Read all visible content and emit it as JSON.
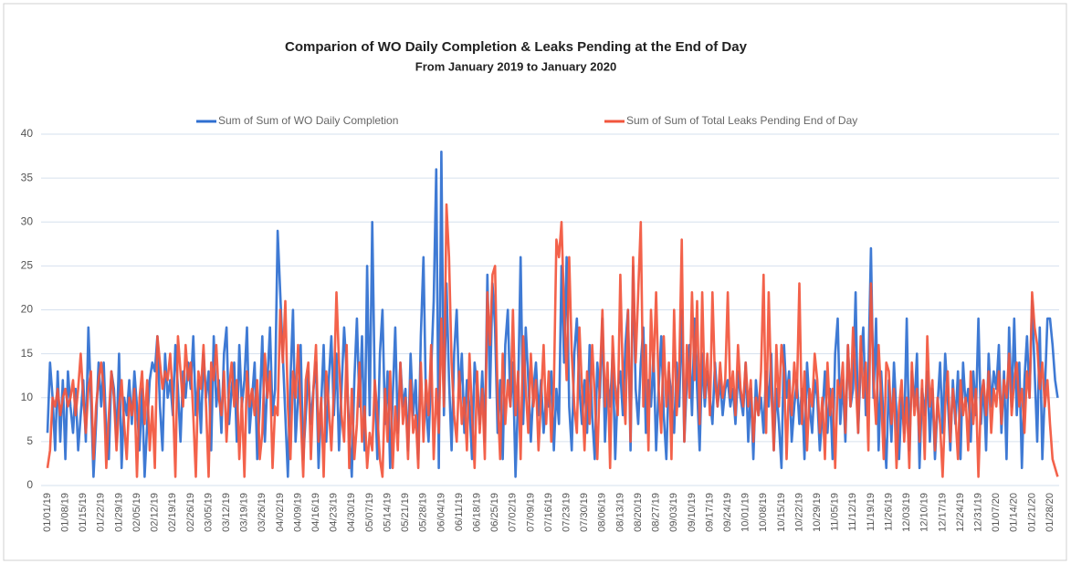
{
  "chart_data": {
    "type": "line",
    "title": "Comparion of WO Daily Completion & Leaks Pending at the End of Day",
    "subtitle": "From January 2019 to January 2020",
    "categories": [
      "01/01/19",
      null,
      null,
      null,
      null,
      null,
      null,
      "01/08/19",
      null,
      null,
      null,
      null,
      null,
      null,
      "01/15/19",
      null,
      null,
      null,
      null,
      null,
      null,
      "01/22/19",
      null,
      null,
      null,
      null,
      null,
      null,
      "01/29/19",
      null,
      null,
      null,
      null,
      null,
      null,
      "02/05/19",
      null,
      null,
      null,
      null,
      null,
      null,
      "02/12/19",
      null,
      null,
      null,
      null,
      null,
      null,
      "02/19/19",
      null,
      null,
      null,
      null,
      null,
      null,
      "02/26/19",
      null,
      null,
      null,
      null,
      null,
      null,
      "03/05/19",
      null,
      null,
      null,
      null,
      null,
      null,
      "03/12/19",
      null,
      null,
      null,
      null,
      null,
      null,
      "03/19/19",
      null,
      null,
      null,
      null,
      null,
      null,
      "03/26/19",
      null,
      null,
      null,
      null,
      null,
      null,
      "04/02/19",
      null,
      null,
      null,
      null,
      null,
      null,
      "04/09/19",
      null,
      null,
      null,
      null,
      null,
      null,
      "04/16/19",
      null,
      null,
      null,
      null,
      null,
      null,
      "04/23/19",
      null,
      null,
      null,
      null,
      null,
      null,
      "04/30/19",
      null,
      null,
      null,
      null,
      null,
      null,
      "05/07/19",
      null,
      null,
      null,
      null,
      null,
      null,
      "05/14/19",
      null,
      null,
      null,
      null,
      null,
      null,
      "05/21/19",
      null,
      null,
      null,
      null,
      null,
      null,
      "05/28/19",
      null,
      null,
      null,
      null,
      null,
      null,
      "06/04/19",
      null,
      null,
      null,
      null,
      null,
      null,
      "06/11/19",
      null,
      null,
      null,
      null,
      null,
      null,
      "06/18/19",
      null,
      null,
      null,
      null,
      null,
      null,
      "06/25/19",
      null,
      null,
      null,
      null,
      null,
      null,
      "07/02/19",
      null,
      null,
      null,
      null,
      null,
      null,
      "07/09/19",
      null,
      null,
      null,
      null,
      null,
      null,
      "07/16/19",
      null,
      null,
      null,
      null,
      null,
      null,
      "07/23/19",
      null,
      null,
      null,
      null,
      null,
      null,
      "07/30/19",
      null,
      null,
      null,
      null,
      null,
      null,
      "08/06/19",
      null,
      null,
      null,
      null,
      null,
      null,
      "08/13/19",
      null,
      null,
      null,
      null,
      null,
      null,
      "08/20/19",
      null,
      null,
      null,
      null,
      null,
      null,
      "08/27/19",
      null,
      null,
      null,
      null,
      null,
      null,
      "09/03/19",
      null,
      null,
      null,
      null,
      null,
      null,
      "09/10/19",
      null,
      null,
      null,
      null,
      null,
      null,
      "09/17/19",
      null,
      null,
      null,
      null,
      null,
      null,
      "09/24/19",
      null,
      null,
      null,
      null,
      null,
      null,
      "10/01/19",
      null,
      null,
      null,
      null,
      null,
      null,
      "10/08/19",
      null,
      null,
      null,
      null,
      null,
      null,
      "10/15/19",
      null,
      null,
      null,
      null,
      null,
      null,
      "10/22/19",
      null,
      null,
      null,
      null,
      null,
      null,
      "10/29/19",
      null,
      null,
      null,
      null,
      null,
      null,
      "11/05/19",
      null,
      null,
      null,
      null,
      null,
      null,
      "11/12/19",
      null,
      null,
      null,
      null,
      null,
      null,
      "11/19/19",
      null,
      null,
      null,
      null,
      null,
      null,
      "11/26/19",
      null,
      null,
      null,
      null,
      null,
      null,
      "12/03/19",
      null,
      null,
      null,
      null,
      null,
      null,
      "12/10/19",
      null,
      null,
      null,
      null,
      null,
      null,
      "12/17/19",
      null,
      null,
      null,
      null,
      null,
      null,
      "12/24/19",
      null,
      null,
      null,
      null,
      null,
      null,
      "12/31/19",
      null,
      null,
      null,
      null,
      null,
      null,
      "01/07/20",
      null,
      null,
      null,
      null,
      null,
      null,
      "01/14/20",
      null,
      null,
      null,
      null,
      null,
      null,
      "01/21/20",
      null,
      null,
      null,
      null,
      null,
      null,
      "01/28/20",
      null,
      null,
      null
    ],
    "series": [
      {
        "name": "Sum of Sum of WO Daily Completion",
        "color": "#2f6fd0",
        "values": [
          6,
          14,
          10,
          4,
          13,
          5,
          12,
          3,
          13,
          9,
          6,
          11,
          4,
          8,
          12,
          5,
          18,
          10,
          1,
          7,
          14,
          9,
          14,
          6,
          3,
          13,
          11,
          5,
          15,
          2,
          10,
          8,
          12,
          7,
          13,
          9,
          4,
          11,
          1,
          7,
          12,
          14,
          13,
          17,
          9,
          4,
          15,
          10,
          12,
          8,
          16,
          11,
          5,
          13,
          10,
          14,
          11,
          17,
          8,
          12,
          6,
          15,
          10,
          13,
          4,
          17,
          9,
          12,
          6,
          15,
          18,
          7,
          11,
          14,
          5,
          16,
          9,
          12,
          18,
          6,
          10,
          14,
          3,
          9,
          17,
          5,
          12,
          18,
          8,
          11,
          29,
          22,
          15,
          8,
          1,
          12,
          20,
          5,
          10,
          16,
          3,
          8,
          13,
          7,
          11,
          14,
          2,
          9,
          16,
          5,
          12,
          17,
          8,
          15,
          4,
          11,
          18,
          13,
          6,
          1,
          12,
          19,
          9,
          17,
          4,
          25,
          8,
          30,
          11,
          3,
          15,
          20,
          7,
          13,
          2,
          10,
          18,
          6,
          14,
          9,
          11,
          4,
          15,
          8,
          12,
          3,
          17,
          26,
          9,
          5,
          13,
          21,
          36,
          2,
          38,
          8,
          23,
          12,
          4,
          15,
          20,
          10,
          15,
          6,
          12,
          9,
          3,
          14,
          11,
          7,
          13,
          5,
          24,
          10,
          23,
          18,
          6,
          12,
          3,
          16,
          20,
          9,
          14,
          1,
          10,
          26,
          7,
          18,
          12,
          5,
          11,
          14,
          8,
          12,
          6,
          10,
          9,
          13,
          4,
          11,
          7,
          25,
          14,
          26,
          9,
          4,
          15,
          19,
          11,
          7,
          12,
          6,
          16,
          8,
          3,
          14,
          10,
          19,
          5,
          12,
          9,
          15,
          3,
          11,
          13,
          8,
          16,
          20,
          4,
          25,
          11,
          7,
          14,
          18,
          6,
          12,
          9,
          15,
          4,
          11,
          17,
          8,
          3,
          13,
          10,
          6,
          14,
          9,
          20,
          5,
          12,
          16,
          8,
          19,
          11,
          4,
          15,
          9,
          13,
          10,
          7,
          14,
          9,
          12,
          8,
          11,
          12,
          9,
          11,
          7,
          13,
          10,
          8,
          14,
          5,
          11,
          3,
          12,
          8,
          10,
          6,
          13,
          9,
          15,
          4,
          11,
          7,
          2,
          16,
          10,
          13,
          5,
          9,
          12,
          7,
          11,
          3,
          14,
          9,
          6,
          12,
          10,
          4,
          8,
          13,
          6,
          11,
          3,
          15,
          19,
          7,
          12,
          5,
          16,
          9,
          11,
          22,
          6,
          14,
          18,
          8,
          13,
          27,
          10,
          19,
          4,
          13,
          7,
          2,
          12,
          5,
          14,
          8,
          3,
          10,
          6,
          19,
          4,
          13,
          9,
          15,
          2,
          11,
          8,
          13,
          5,
          11,
          3,
          9,
          14,
          6,
          15,
          10,
          4,
          12,
          7,
          13,
          3,
          14,
          9,
          11,
          5,
          13,
          8,
          19,
          7,
          12,
          4,
          15,
          9,
          13,
          11,
          16,
          6,
          13,
          3,
          18,
          9,
          19,
          8,
          14,
          2,
          12,
          17,
          10,
          21,
          13,
          5,
          18,
          3,
          11,
          19,
          19,
          16,
          12,
          10
        ]
      },
      {
        "name": "Sum of Sum of Total Leaks Pending End of Day",
        "color": "#f2553c",
        "values": [
          2,
          4,
          10,
          9,
          11,
          8,
          10,
          11,
          9,
          10,
          12,
          8,
          11,
          15,
          10,
          6,
          11,
          13,
          3,
          9,
          12,
          14,
          11,
          2,
          8,
          13,
          10,
          4,
          9,
          12,
          7,
          3,
          10,
          8,
          11,
          1,
          10,
          13,
          7,
          12,
          4,
          9,
          2,
          17,
          14,
          11,
          13,
          12,
          15,
          10,
          1,
          17,
          13,
          9,
          16,
          12,
          14,
          8,
          1,
          13,
          11,
          16,
          9,
          1,
          14,
          12,
          16,
          10,
          8,
          13,
          5,
          11,
          14,
          9,
          12,
          3,
          10,
          1,
          13,
          9,
          11,
          8,
          12,
          3,
          6,
          15,
          10,
          13,
          2,
          9,
          8,
          20,
          14,
          21,
          9,
          3,
          13,
          10,
          16,
          8,
          1,
          12,
          14,
          3,
          11,
          16,
          5,
          10,
          1,
          13,
          9,
          4,
          11,
          22,
          14,
          8,
          5,
          16,
          2,
          11,
          3,
          7,
          14,
          5,
          9,
          2,
          6,
          4,
          12,
          8,
          3,
          1,
          11,
          5,
          13,
          2,
          9,
          4,
          14,
          7,
          10,
          3,
          12,
          6,
          8,
          2,
          14,
          5,
          12,
          8,
          16,
          3,
          11,
          6,
          19,
          9,
          32,
          26,
          14,
          8,
          5,
          13,
          7,
          10,
          4,
          15,
          8,
          2,
          13,
          6,
          11,
          3,
          22,
          16,
          24,
          25,
          10,
          3,
          15,
          7,
          12,
          9,
          20,
          8,
          13,
          3,
          17,
          11,
          6,
          15,
          9,
          12,
          4,
          10,
          16,
          7,
          13,
          5,
          11,
          28,
          26,
          30,
          20,
          12,
          26,
          15,
          9,
          6,
          18,
          11,
          4,
          13,
          7,
          16,
          10,
          3,
          12,
          20,
          9,
          14,
          2,
          17,
          11,
          8,
          24,
          12,
          7,
          20,
          5,
          26,
          14,
          22,
          30,
          9,
          16,
          4,
          20,
          13,
          22,
          11,
          6,
          17,
          9,
          14,
          3,
          20,
          8,
          13,
          28,
          5,
          16,
          10,
          22,
          12,
          21,
          7,
          22,
          10,
          15,
          8,
          22,
          12,
          9,
          14,
          10,
          12,
          22,
          10,
          13,
          8,
          16,
          11,
          9,
          14,
          9,
          12,
          5,
          10,
          8,
          13,
          24,
          6,
          22,
          11,
          4,
          16,
          9,
          16,
          13,
          3,
          12,
          8,
          14,
          10,
          23,
          7,
          13,
          4,
          11,
          9,
          15,
          12,
          6,
          10,
          3,
          14,
          8,
          11,
          2,
          12,
          10,
          14,
          6,
          16,
          9,
          18,
          12,
          6,
          17,
          10,
          14,
          4,
          23,
          12,
          7,
          16,
          10,
          3,
          14,
          13,
          7,
          11,
          2,
          9,
          12,
          5,
          10,
          2,
          14,
          8,
          11,
          5,
          12,
          3,
          17,
          9,
          12,
          4,
          10,
          7,
          1,
          9,
          13,
          5,
          11,
          8,
          3,
          12,
          8,
          10,
          4,
          13,
          7,
          11,
          1,
          10,
          12,
          8,
          13,
          6,
          11,
          9,
          13,
          7,
          12,
          10,
          15,
          8,
          12,
          14,
          9,
          11,
          6,
          13,
          10,
          22,
          18,
          16,
          11,
          14,
          9,
          12,
          7,
          3,
          2,
          1
        ]
      }
    ],
    "ylim": [
      0,
      40
    ],
    "yticks": [
      0,
      5,
      10,
      15,
      20,
      25,
      30,
      35,
      40
    ],
    "grid": true,
    "legend": "top"
  }
}
